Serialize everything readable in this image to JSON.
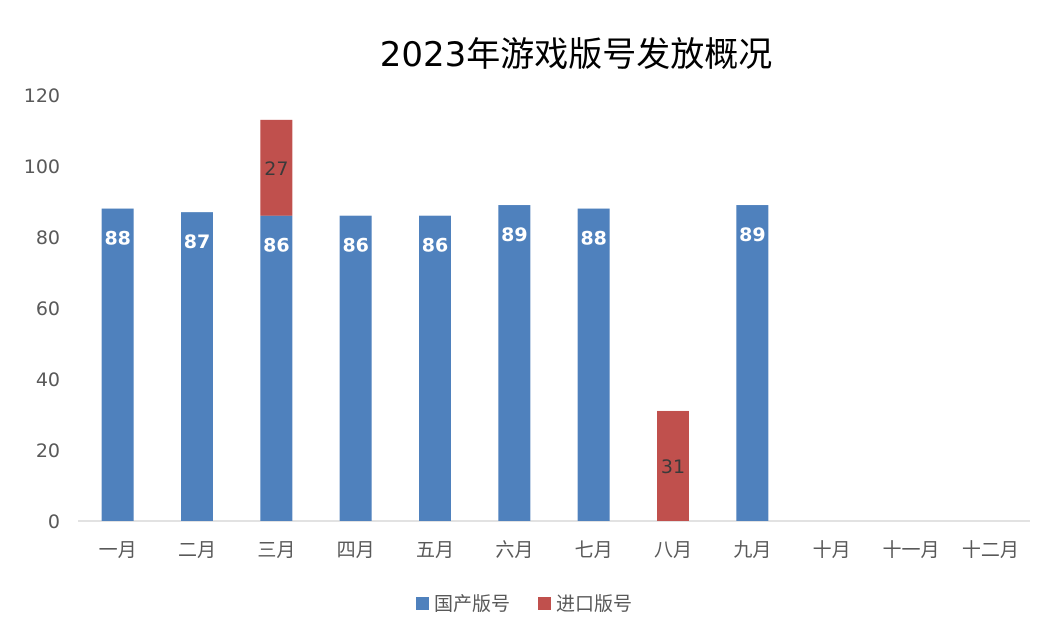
{
  "chart_data": {
    "type": "bar",
    "stacked": true,
    "title": "2023年游戏版号发放概况",
    "categories": [
      "一月",
      "二月",
      "三月",
      "四月",
      "五月",
      "六月",
      "七月",
      "八月",
      "九月",
      "十月",
      "十一月",
      "十二月"
    ],
    "series": [
      {
        "name": "国产版号",
        "color": "#4f81bd",
        "values": [
          88,
          87,
          86,
          86,
          86,
          89,
          88,
          0,
          89,
          0,
          0,
          0
        ]
      },
      {
        "name": "进口版号",
        "color": "#c0504d",
        "values": [
          0,
          0,
          27,
          0,
          0,
          0,
          0,
          31,
          0,
          0,
          0,
          0
        ]
      }
    ],
    "ylim": [
      0,
      120
    ],
    "yticks": [
      0,
      20,
      40,
      60,
      80,
      100,
      120
    ],
    "grid": false,
    "legend_position": "bottom",
    "xlabel": "",
    "ylabel": ""
  }
}
